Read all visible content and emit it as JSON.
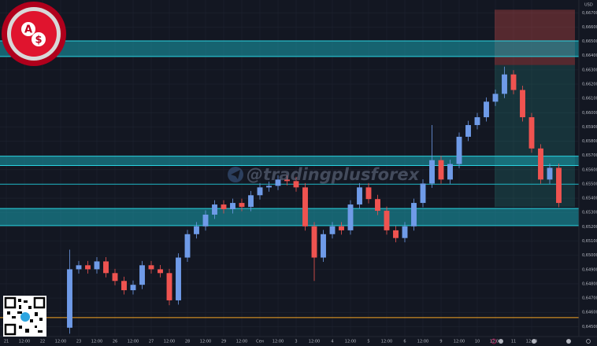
{
  "chart_data": {
    "type": "candlestick",
    "currency": "USD",
    "watermark": "@tradingplusforex",
    "logo_letters": [
      "A",
      "$"
    ],
    "categories": [
      "21",
      null,
      "12:00",
      null,
      "22",
      null,
      "12:00",
      null,
      "23",
      null,
      "12:00",
      null,
      "26",
      null,
      "12:00",
      null,
      "27",
      null,
      "12:00",
      null,
      "28",
      null,
      "12:00",
      null,
      "29",
      null,
      "12:00",
      null,
      "Сен",
      null,
      "12:00",
      null,
      "3",
      null,
      "12:00",
      null,
      "4",
      null,
      "12:00",
      null,
      "5",
      null,
      "12:00",
      null,
      "6",
      null,
      "12:00",
      null,
      "9",
      null,
      "12:00",
      null,
      "10",
      null,
      "12:00",
      null,
      "11",
      null,
      "12:00",
      null,
      null,
      null,
      null,
      null
    ],
    "open": [
      null,
      null,
      null,
      null,
      null,
      null,
      null,
      0.64492,
      0.64902,
      0.6493,
      0.64902,
      0.64957,
      0.64875,
      0.6482,
      0.64755,
      0.64793,
      0.6493,
      0.64902,
      0.64875,
      0.64684,
      0.64984,
      0.65148,
      0.65203,
      0.65285,
      0.65356,
      0.65323,
      0.65367,
      0.65339,
      0.65421,
      0.65476,
      0.65487,
      0.65531,
      0.6552,
      0.65476,
      0.65203,
      0.64984,
      0.65148,
      0.65203,
      0.65175,
      0.65356,
      0.65476,
      0.65394,
      0.65312,
      0.65175,
      0.65121,
      0.65203,
      0.65367,
      0.65503,
      0.65667,
      0.65531,
      0.6564,
      0.65831,
      0.65913,
      0.65968,
      0.66077,
      0.66132,
      0.66268,
      0.66159,
      0.65968,
      0.65749,
      0.65531,
      0.65613,
      null,
      null
    ],
    "high": [
      null,
      null,
      null,
      null,
      null,
      null,
      null,
      0.65039,
      0.6496,
      0.6496,
      0.64987,
      0.64987,
      0.64905,
      0.6485,
      0.64823,
      0.6496,
      0.6496,
      0.64932,
      0.64905,
      0.65014,
      0.65178,
      0.65233,
      0.65315,
      0.65386,
      0.65386,
      0.65397,
      0.65397,
      0.65451,
      0.65506,
      0.65517,
      0.65561,
      0.65561,
      0.6555,
      0.65506,
      0.65233,
      0.65178,
      0.65233,
      0.65233,
      0.65386,
      0.65506,
      0.65506,
      0.65424,
      0.65342,
      0.65205,
      0.65233,
      0.65397,
      0.65533,
      0.65913,
      0.65697,
      0.6567,
      0.65861,
      0.65943,
      0.65998,
      0.66107,
      0.66162,
      0.66323,
      0.66298,
      0.66189,
      0.65998,
      0.65779,
      0.65643,
      0.65643,
      null,
      null
    ],
    "low": [
      null,
      null,
      null,
      null,
      null,
      null,
      null,
      0.6445,
      0.64872,
      0.64872,
      0.64872,
      0.64845,
      0.6479,
      0.64725,
      0.64725,
      0.64763,
      0.64872,
      0.64845,
      0.6465,
      0.64654,
      0.64954,
      0.65118,
      0.65173,
      0.65255,
      0.65293,
      0.65293,
      0.65309,
      0.65309,
      0.65391,
      0.65446,
      0.65457,
      0.6549,
      0.65446,
      0.65173,
      0.6482,
      0.64954,
      0.65118,
      0.65145,
      0.65145,
      0.65326,
      0.65364,
      0.65282,
      0.65145,
      0.65091,
      0.65091,
      0.65173,
      0.65337,
      0.65473,
      0.65501,
      0.65501,
      0.6561,
      0.65801,
      0.65883,
      0.65938,
      0.66047,
      0.66102,
      0.66129,
      0.65938,
      0.65719,
      0.65501,
      0.65501,
      0.65337,
      null,
      null
    ],
    "close": [
      null,
      null,
      null,
      null,
      null,
      null,
      null,
      0.64902,
      0.6493,
      0.64902,
      0.64957,
      0.64875,
      0.6482,
      0.64755,
      0.64793,
      0.6493,
      0.64902,
      0.64875,
      0.64684,
      0.64984,
      0.65148,
      0.65203,
      0.65285,
      0.65356,
      0.65323,
      0.65367,
      0.65339,
      0.65421,
      0.65476,
      0.65487,
      0.65531,
      0.6552,
      0.65476,
      0.65203,
      0.64984,
      0.65148,
      0.65203,
      0.65175,
      0.65356,
      0.65476,
      0.65394,
      0.65312,
      0.65175,
      0.65121,
      0.65203,
      0.65367,
      0.65503,
      0.65667,
      0.65531,
      0.6564,
      0.65831,
      0.65913,
      0.65968,
      0.66077,
      0.66132,
      0.66268,
      0.66159,
      0.65968,
      0.65749,
      0.65531,
      0.65613,
      0.65367,
      null,
      null
    ],
    "up_color": "#6f9be8",
    "down_color": "#ef5350",
    "zones": [
      {
        "low": 0.66394,
        "high": 0.66503
      },
      {
        "low": 0.65629,
        "high": 0.65695
      },
      {
        "low": 0.65208,
        "high": 0.65328
      }
    ],
    "zone_color": "#1aa3b0",
    "lines": [
      {
        "value": 0.65498,
        "color": "#1fb5c3"
      },
      {
        "value": 0.64563,
        "color": "#f5a623"
      }
    ],
    "position": {
      "stop": 0.66722,
      "entry": 0.66334,
      "target": 0.65339
    },
    "ylim": [
      0.6443,
      0.6679
    ],
    "yticks": [
      {
        "value": 0.645,
        "label": "0,64500"
      },
      {
        "value": 0.646,
        "label": "0,64600"
      },
      {
        "value": 0.647,
        "label": "0,64700"
      },
      {
        "value": 0.648,
        "label": "0,64800"
      },
      {
        "value": 0.649,
        "label": "0,64900"
      },
      {
        "value": 0.65,
        "label": "0,65000"
      },
      {
        "value": 0.651,
        "label": "0,65100"
      },
      {
        "value": 0.652,
        "label": "0,65200"
      },
      {
        "value": 0.653,
        "label": "0,65300"
      },
      {
        "value": 0.654,
        "label": "0,65400"
      },
      {
        "value": 0.655,
        "label": "0,65500"
      },
      {
        "value": 0.656,
        "label": "0,65600"
      },
      {
        "value": 0.657,
        "label": "0,65700"
      },
      {
        "value": 0.658,
        "label": "0,65800"
      },
      {
        "value": 0.659,
        "label": "0,65900"
      },
      {
        "value": 0.66,
        "label": "0,66000"
      },
      {
        "value": 0.661,
        "label": "0,66100"
      },
      {
        "value": 0.662,
        "label": "0,66200"
      },
      {
        "value": 0.663,
        "label": "0,66300"
      },
      {
        "value": 0.664,
        "label": "0,66400"
      },
      {
        "value": 0.665,
        "label": "0,66500"
      },
      {
        "value": 0.666,
        "label": "0,66600"
      },
      {
        "value": 0.667,
        "label": "0,66700"
      }
    ],
    "grid": true
  }
}
